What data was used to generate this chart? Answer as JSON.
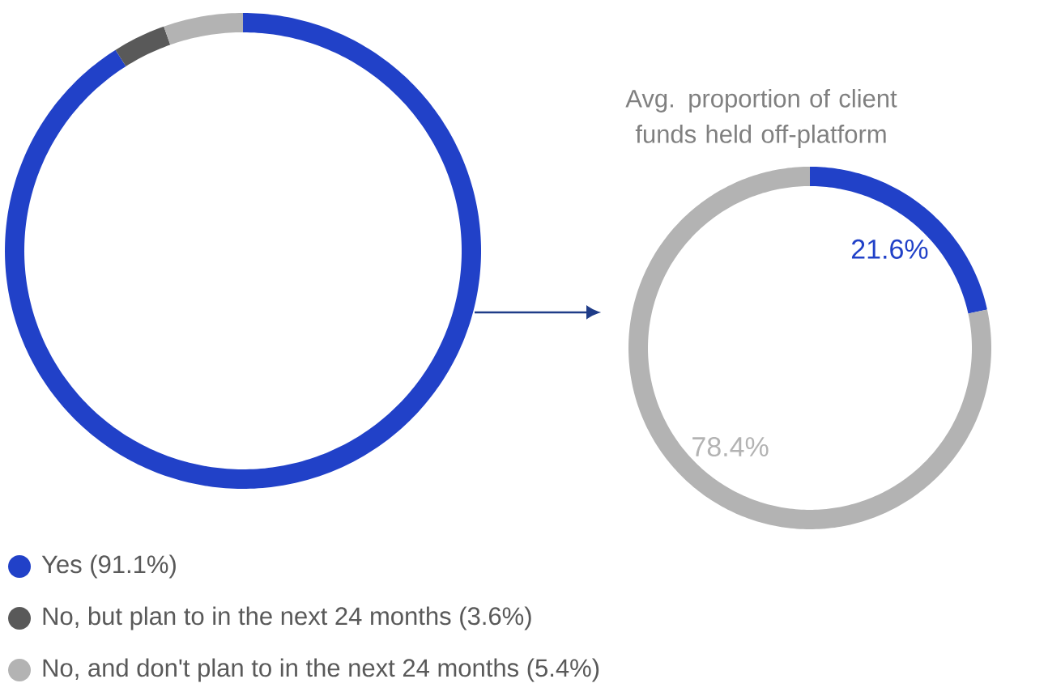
{
  "chart_data": [
    {
      "type": "donut",
      "categories": [
        "Yes (91.1%)",
        "No, but plan to in the next 24 months (3.6%)",
        "No, and don't plan to in the next 24 months (5.4%)"
      ],
      "values": [
        91.1,
        3.6,
        5.4
      ],
      "colors": [
        "#2141c8",
        "#595959",
        "#b3b3b3"
      ],
      "legend": "bottom"
    },
    {
      "type": "donut",
      "title": "Avg. proportion of client funds held off-platform",
      "categories": [
        null,
        null
      ],
      "values": [
        21.6,
        78.4
      ],
      "colors": [
        "#2141c8",
        "#b3b3b3"
      ],
      "value_labels": [
        "21.6%",
        "78.4%"
      ]
    }
  ]
}
